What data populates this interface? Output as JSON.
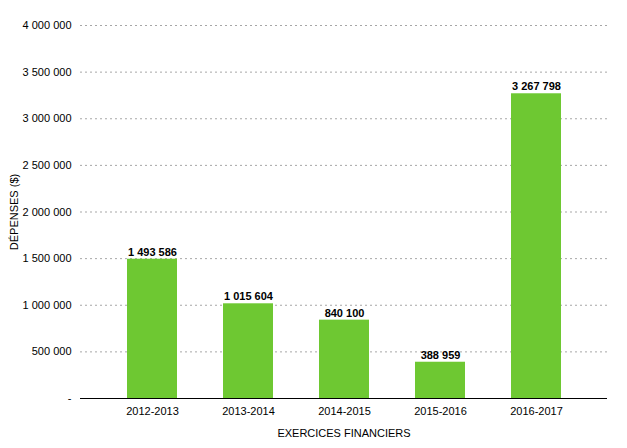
{
  "chart_data": {
    "type": "bar",
    "categories": [
      "2012-2013",
      "2013-2014",
      "2014-2015",
      "2015-2016",
      "2016-2017"
    ],
    "values": [
      1493586,
      1015604,
      840100,
      388959,
      3267798
    ],
    "value_labels": [
      "1 493 586",
      "1 015 604",
      "840 100",
      "388 959",
      "3 267 798"
    ],
    "data_labels": true,
    "color": "#6ec832",
    "xlabel": "EXERCICES FINANCIERS",
    "ylabel": "DÉPENSES ($)",
    "ylim": [
      0,
      4000000
    ],
    "yticks": [
      {
        "value": 0,
        "label": "-"
      },
      {
        "value": 500000,
        "label": "500 000"
      },
      {
        "value": 1000000,
        "label": "1 000 000"
      },
      {
        "value": 1500000,
        "label": "1 500 000"
      },
      {
        "value": 2000000,
        "label": "2 000 000"
      },
      {
        "value": 2500000,
        "label": "2 500 000"
      },
      {
        "value": 3000000,
        "label": "3 000 000"
      },
      {
        "value": 3500000,
        "label": "3 500 000"
      },
      {
        "value": 4000000,
        "label": "4 000 000"
      }
    ],
    "grid": true
  }
}
